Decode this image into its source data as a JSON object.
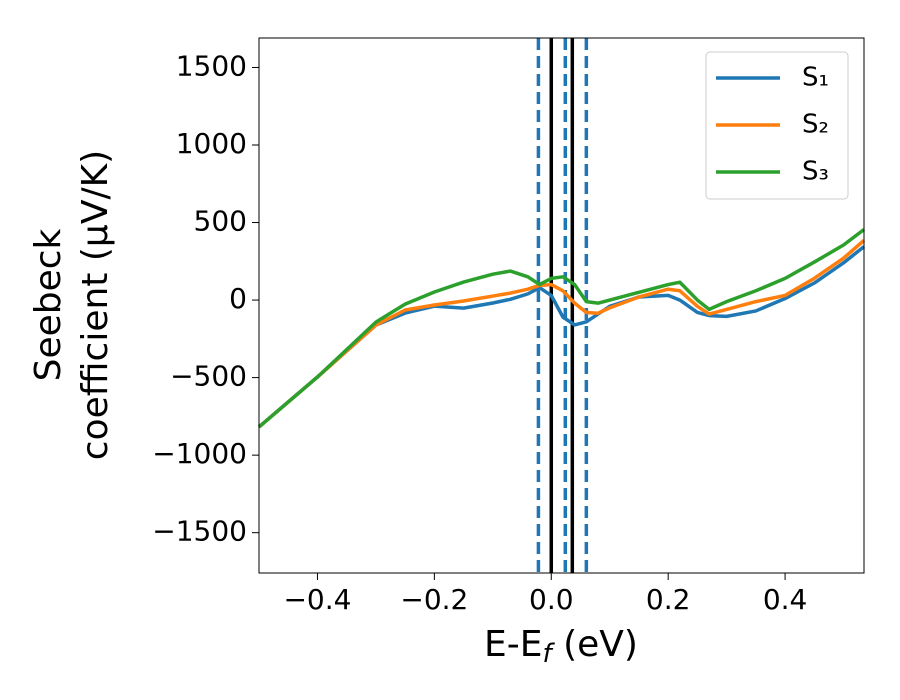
{
  "chart_data": {
    "type": "line",
    "x_label": [
      "E-E",
      "f",
      " (eV)"
    ],
    "y_label": [
      "Seebeck",
      "coefficient  (μV/K)"
    ],
    "x": [
      -0.5,
      -0.4,
      -0.3,
      -0.25,
      -0.2,
      -0.15,
      -0.1,
      -0.07,
      -0.04,
      -0.02,
      0,
      0.02,
      0.04,
      0.06,
      0.08,
      0.1,
      0.15,
      0.2,
      0.22,
      0.25,
      0.27,
      0.3,
      0.35,
      0.4,
      0.45,
      0.5,
      0.535
    ],
    "series": [
      {
        "name": "S₁",
        "color": "#1f77b4",
        "values": [
          -818,
          -496,
          -161,
          -84,
          -39,
          -52,
          -19,
          5,
          40,
          80,
          30,
          -110,
          -160,
          -140,
          -90,
          -40,
          20,
          30,
          0,
          -80,
          -100,
          -105,
          -70,
          10,
          110,
          240,
          345
        ]
      },
      {
        "name": "S₂",
        "color": "#ff7f0e",
        "values": [
          -818,
          -496,
          -161,
          -64,
          -32,
          -6,
          26,
          45,
          70,
          95,
          100,
          60,
          -20,
          -80,
          -85,
          -50,
          20,
          70,
          60,
          -40,
          -90,
          -60,
          -10,
          30,
          140,
          270,
          385
        ]
      },
      {
        "name": "S₃",
        "color": "#2ca02c",
        "values": [
          -818,
          -496,
          -142,
          -26,
          52,
          116,
          167,
          187,
          150,
          100,
          140,
          150,
          100,
          -10,
          -20,
          0,
          50,
          100,
          115,
          0,
          -60,
          -10,
          60,
          140,
          245,
          355,
          455
        ]
      }
    ],
    "vlines": [
      {
        "x": -0.022,
        "color": "#1f77b4",
        "dashed": true
      },
      {
        "x": 0,
        "color": "#000000",
        "dashed": false
      },
      {
        "x": 0.024,
        "color": "#1f77b4",
        "dashed": true
      },
      {
        "x": 0.036,
        "color": "#000000",
        "dashed": false
      },
      {
        "x": 0.06,
        "color": "#1f77b4",
        "dashed": true
      }
    ],
    "xlim": [
      -0.5,
      0.535
    ],
    "ylim": [
      -1760,
      1690
    ],
    "xticks": [
      {
        "value": -0.4,
        "label": "−0.4"
      },
      {
        "value": -0.2,
        "label": "−0.2"
      },
      {
        "value": 0,
        "label": "0.0"
      },
      0.2,
      0.4
    ],
    "yticks": [
      {
        "value": -1500,
        "label": "−1500"
      },
      {
        "value": -1000,
        "label": "−1000"
      },
      {
        "value": -500,
        "label": "−500"
      },
      0,
      500,
      1000,
      1500
    ],
    "grid": false,
    "legend": "upper right"
  }
}
